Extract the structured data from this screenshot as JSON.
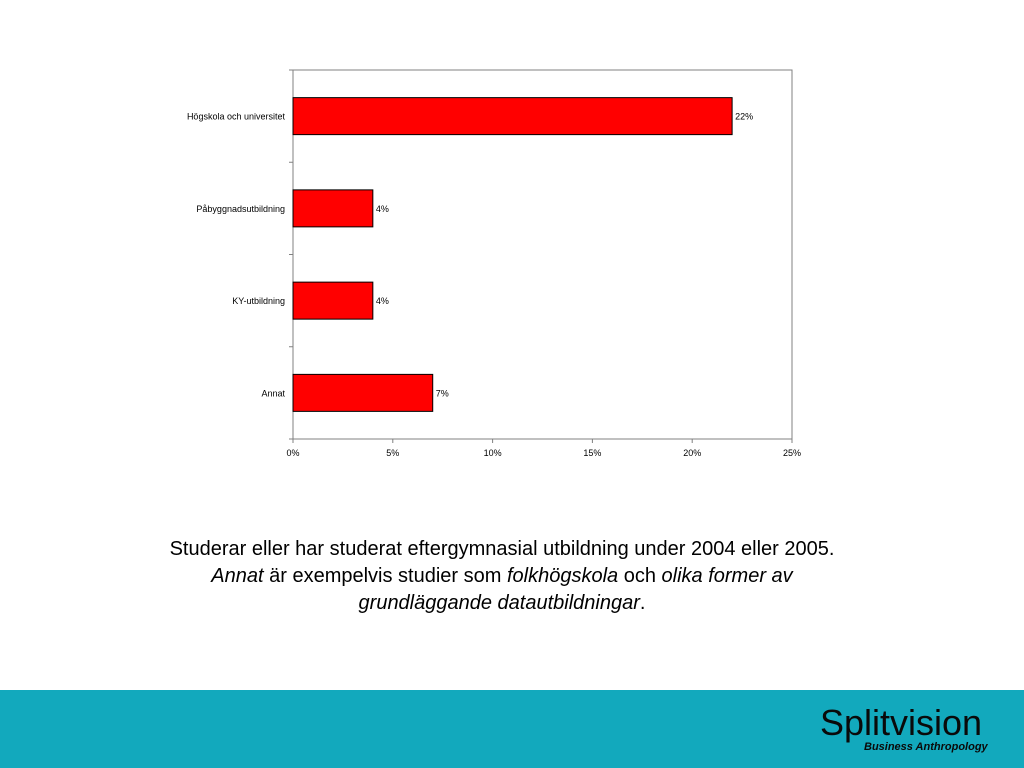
{
  "chart_data": {
    "type": "bar",
    "orientation": "horizontal",
    "categories": [
      "Högskola och universitet",
      "Påbyggnadsutbildning",
      "KY-utbildning",
      "Annat"
    ],
    "values": [
      22,
      4,
      4,
      7
    ],
    "value_labels": [
      "22%",
      "4%",
      "4%",
      "7%"
    ],
    "xlim": [
      0,
      25
    ],
    "x_ticks": [
      0,
      5,
      10,
      15,
      20,
      25
    ],
    "x_tick_labels": [
      "0%",
      "5%",
      "10%",
      "15%",
      "20%",
      "25%"
    ],
    "grid": false,
    "legend": "none",
    "bar_color": "#ff0000",
    "bar_edge_color": "#000000"
  },
  "caption": {
    "part1": "Studerar eller har studerat eftergymnasial utbildning under 2004 eller 2005. ",
    "annat": "Annat",
    "part2": " är exempelvis studier som ",
    "folkhogskola": "folkhögskola",
    "part3": " och ",
    "olika": "olika former av grundläggande datautbildningar",
    "part4": "."
  },
  "footer": {
    "band_color": "#12a9bd",
    "logo_name": "Splitvision",
    "logo_tagline": "Business Anthropology"
  }
}
